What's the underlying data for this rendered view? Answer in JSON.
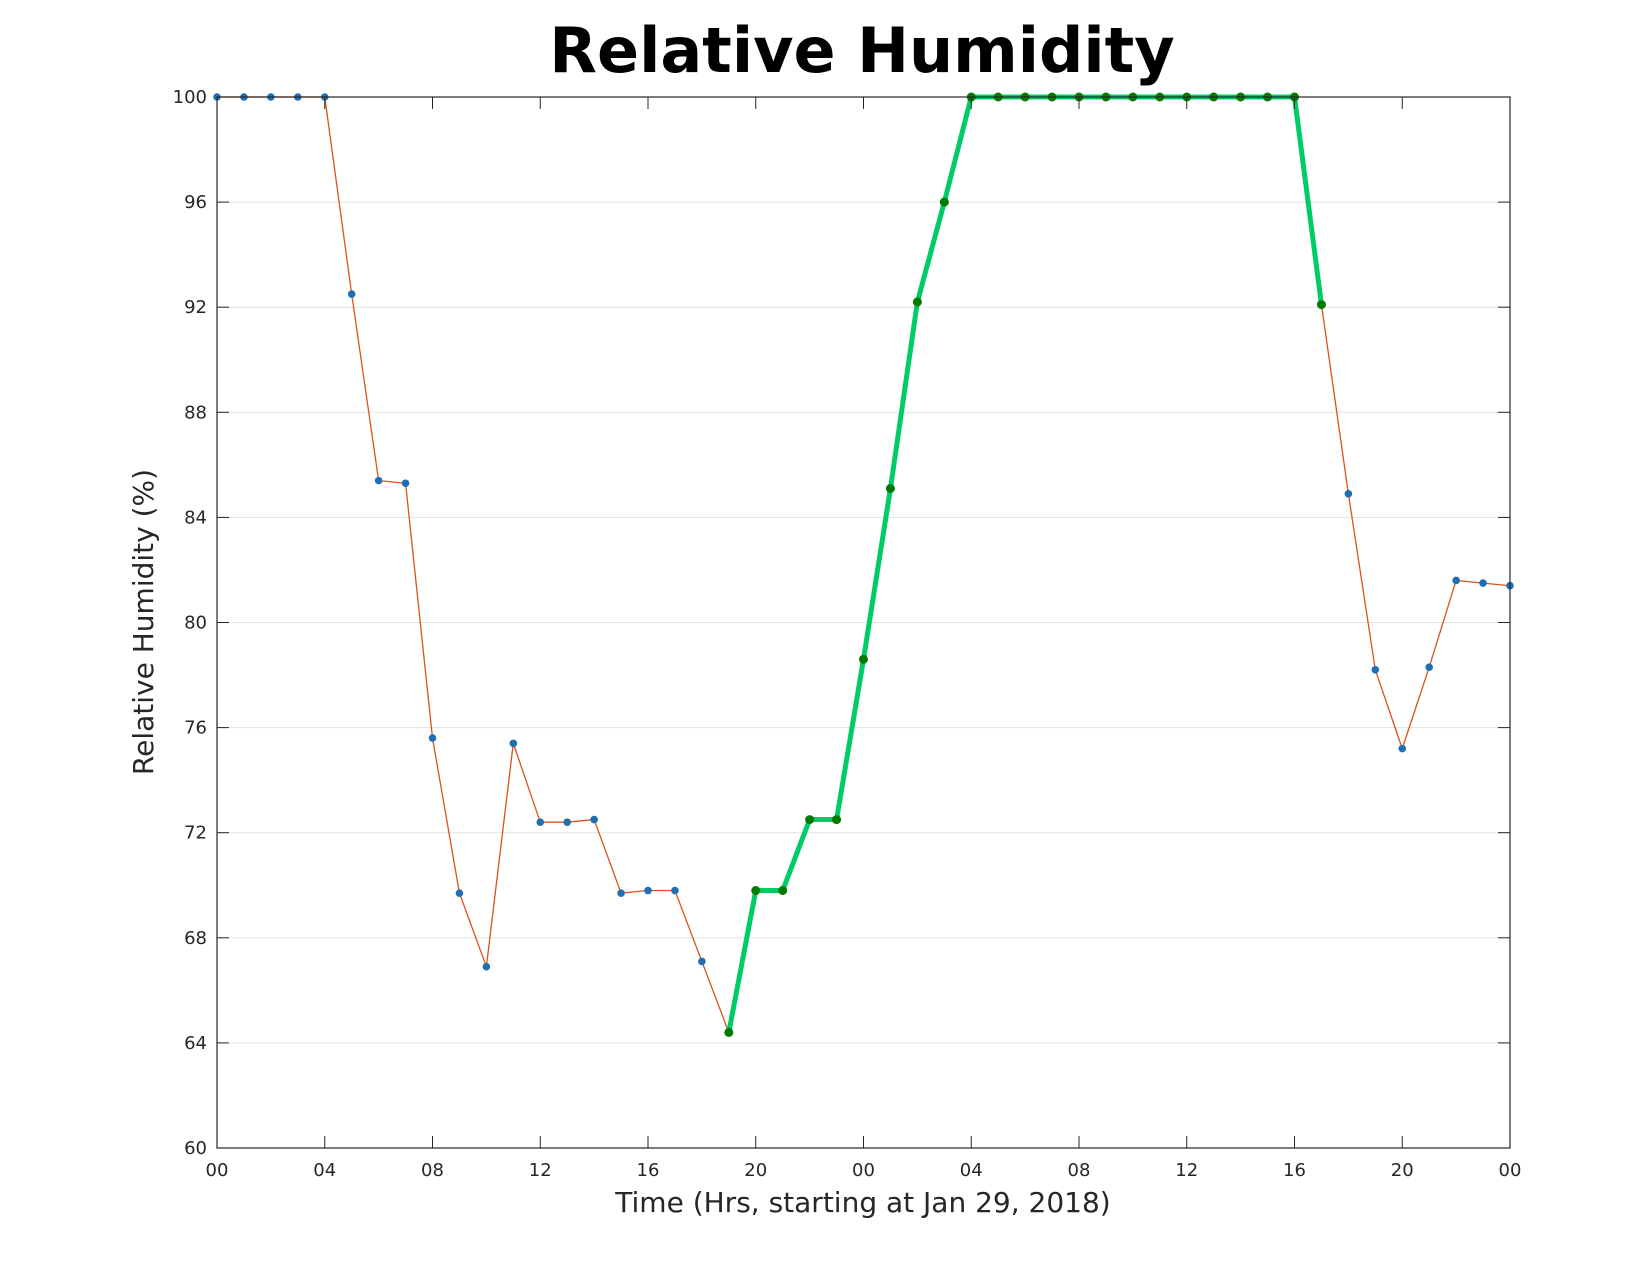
{
  "chart_data": {
    "type": "line",
    "title": "Relative Humidity",
    "xlabel": "Time (Hrs, starting at Jan 29, 2018)",
    "ylabel": "Relative Humidity (%)",
    "x_unit": "hours",
    "xlim": [
      0,
      48
    ],
    "ylim": [
      60,
      100
    ],
    "x_tick_values": [
      0,
      4,
      8,
      12,
      16,
      20,
      24,
      28,
      32,
      36,
      40,
      44,
      48
    ],
    "x_tick_labels": [
      "00",
      "04",
      "08",
      "12",
      "16",
      "20",
      "00",
      "04",
      "08",
      "12",
      "16",
      "20",
      "00"
    ],
    "y_ticks": [
      60,
      64,
      68,
      72,
      76,
      80,
      84,
      88,
      92,
      96,
      100
    ],
    "grid": "horizontal",
    "legend": "none",
    "series": [
      {
        "style": "thin-line-with-markers",
        "color": "#d95319",
        "marker_color": "#1f6fb4",
        "x": [
          0,
          1,
          2,
          3,
          4,
          5,
          6,
          7,
          8,
          9,
          10,
          11,
          12,
          13,
          14,
          15,
          16,
          17,
          18,
          19,
          20,
          21,
          22,
          23,
          24,
          25,
          26,
          27,
          28,
          29,
          30,
          31,
          32,
          33,
          34,
          35,
          36,
          37,
          38,
          39,
          40,
          41,
          42,
          43,
          44,
          45,
          46,
          47,
          48
        ],
        "values": [
          100,
          100,
          100,
          100,
          100,
          92.5,
          85.4,
          85.3,
          75.6,
          69.7,
          66.9,
          75.4,
          72.4,
          72.4,
          72.5,
          69.7,
          69.8,
          69.8,
          67.1,
          64.4,
          69.8,
          69.8,
          72.5,
          72.5,
          78.6,
          85.1,
          92.2,
          96.0,
          100,
          100,
          100,
          100,
          100,
          100,
          100,
          100,
          100,
          100,
          100,
          100,
          100,
          92.1,
          84.9,
          78.2,
          75.2,
          78.3,
          81.6,
          81.5,
          81.4
        ]
      },
      {
        "style": "thick-line-with-markers",
        "color": "#00cc66",
        "marker_color": "#007a00",
        "x": [
          19,
          20,
          21,
          22,
          23,
          24,
          25,
          26,
          27,
          28,
          29,
          30,
          31,
          32,
          33,
          34,
          35,
          36,
          37,
          38,
          39,
          40,
          41
        ],
        "values": [
          64.4,
          69.8,
          69.8,
          72.5,
          72.5,
          78.6,
          85.1,
          92.2,
          96.0,
          100,
          100,
          100,
          100,
          100,
          100,
          100,
          100,
          100,
          100,
          100,
          100,
          100,
          92.1
        ]
      }
    ]
  }
}
